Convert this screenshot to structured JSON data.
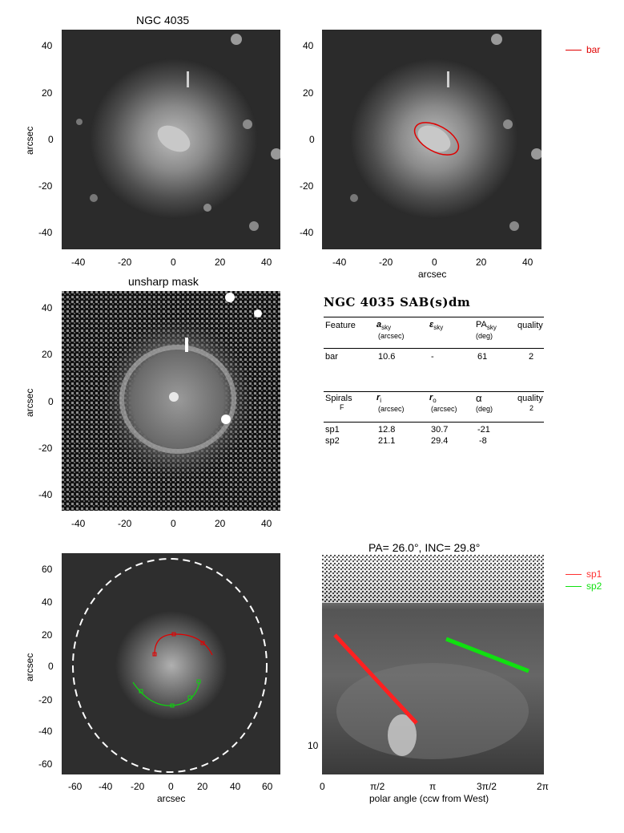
{
  "panels": {
    "top_left": {
      "title": "NGC 4035",
      "ylabel": "arcsec",
      "xticks": [
        "-40",
        "-20",
        "0",
        "20",
        "40"
      ],
      "yticks": [
        "40",
        "20",
        "0",
        "-20",
        "-40"
      ]
    },
    "top_right": {
      "xlabel": "arcsec",
      "xticks": [
        "-40",
        "-20",
        "0",
        "20",
        "40"
      ],
      "yticks": [
        "40",
        "20",
        "0",
        "-20",
        "-40"
      ],
      "legend": [
        {
          "label": "bar",
          "color": "#e00000"
        }
      ]
    },
    "mid_left": {
      "title": "unsharp mask",
      "ylabel": "arcsec",
      "xticks": [
        "-40",
        "-20",
        "0",
        "20",
        "40"
      ],
      "yticks": [
        "40",
        "20",
        "0",
        "-20",
        "-40"
      ]
    },
    "bottom_left": {
      "xlabel": "arcsec",
      "ylabel": "arcsec",
      "xticks": [
        "-60",
        "-40",
        "-20",
        "0",
        "20",
        "40",
        "60"
      ],
      "yticks": [
        "60",
        "40",
        "20",
        "0",
        "-20",
        "-40",
        "-60"
      ]
    },
    "bottom_right": {
      "title": "PA= 26.0°, INC= 29.8°",
      "xlabel": "polar angle (ccw from West)",
      "xticks": [
        "0",
        "π/2",
        "π",
        "3π/2",
        "2π"
      ],
      "yticks": [
        "10"
      ],
      "legend": [
        {
          "label": "sp1",
          "color": "#ff3030"
        },
        {
          "label": "sp2",
          "color": "#10e010"
        }
      ]
    }
  },
  "table": {
    "title": "NGC 4035   SAB(s)dm",
    "bar_header": {
      "feature": "Feature",
      "a_sym": "a",
      "a_sub": "sky",
      "a_unit": "(arcsec)",
      "e_sym": "ε",
      "e_sub": "sky",
      "pa_sym": "PA",
      "pa_sub": "sky",
      "pa_unit": "(deg)",
      "quality": "quality"
    },
    "bar_row": {
      "feature": "bar",
      "a": "10.6",
      "e": "-",
      "pa": "61",
      "quality": "2"
    },
    "spiral_header": {
      "feature": "Spirals",
      "feature_sub": "F",
      "ri_sym": "r",
      "ri_sub": "i",
      "ri_unit": "(arcsec)",
      "ro_sym": "r",
      "ro_sub": "o",
      "ro_unit": "(arcsec)",
      "alpha_sym": "α",
      "alpha_unit": "(deg)",
      "quality": "quality",
      "quality_sub": "2"
    },
    "spiral_rows": [
      {
        "name": "sp1",
        "ri": "12.8",
        "ro": "30.7",
        "alpha": "-21"
      },
      {
        "name": "sp2",
        "ri": "21.1",
        "ro": "29.4",
        "alpha": "-8"
      }
    ]
  }
}
